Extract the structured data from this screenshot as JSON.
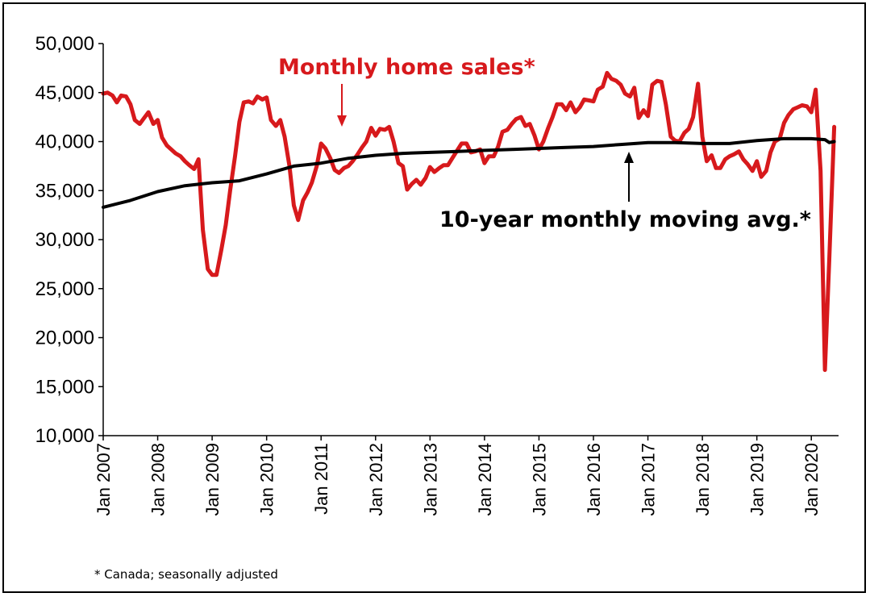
{
  "chart_data": {
    "type": "line",
    "title": "",
    "xlabel": "",
    "ylabel": "",
    "ylim": [
      10000,
      50000
    ],
    "yticks": [
      10000,
      15000,
      20000,
      25000,
      30000,
      35000,
      40000,
      45000,
      50000
    ],
    "ytick_labels": [
      "10,000",
      "15,000",
      "20,000",
      "25,000",
      "30,000",
      "35,000",
      "40,000",
      "45,000",
      "50,000"
    ],
    "xlim": [
      2007.0,
      2020.5
    ],
    "xticks": [
      2007,
      2008,
      2009,
      2010,
      2011,
      2012,
      2013,
      2014,
      2015,
      2016,
      2017,
      2018,
      2019,
      2020
    ],
    "xtick_labels": [
      "Jan 2007",
      "Jan 2008",
      "Jan 2009",
      "Jan 2010",
      "Jan 2011",
      "Jan 2012",
      "Jan 2013",
      "Jan 2014",
      "Jan 2015",
      "Jan 2016",
      "Jan 2017",
      "Jan 2018",
      "Jan 2019",
      "Jan 2020"
    ],
    "grid": false,
    "series": [
      {
        "name": "Monthly home sales*",
        "color": "#d7191c",
        "points": [
          [
            2007.0,
            44900
          ],
          [
            2007.08,
            45000
          ],
          [
            2007.17,
            44700
          ],
          [
            2007.25,
            44000
          ],
          [
            2007.33,
            44700
          ],
          [
            2007.42,
            44600
          ],
          [
            2007.5,
            43800
          ],
          [
            2007.58,
            42200
          ],
          [
            2007.67,
            41800
          ],
          [
            2007.75,
            42400
          ],
          [
            2007.83,
            43000
          ],
          [
            2007.92,
            41800
          ],
          [
            2008.0,
            42200
          ],
          [
            2008.08,
            40400
          ],
          [
            2008.17,
            39600
          ],
          [
            2008.25,
            39200
          ],
          [
            2008.33,
            38800
          ],
          [
            2008.42,
            38500
          ],
          [
            2008.5,
            38000
          ],
          [
            2008.58,
            37600
          ],
          [
            2008.67,
            37200
          ],
          [
            2008.75,
            38200
          ],
          [
            2008.83,
            31000
          ],
          [
            2008.92,
            27000
          ],
          [
            2009.0,
            26400
          ],
          [
            2009.08,
            26400
          ],
          [
            2009.17,
            29000
          ],
          [
            2009.25,
            31500
          ],
          [
            2009.33,
            35000
          ],
          [
            2009.42,
            38500
          ],
          [
            2009.5,
            42000
          ],
          [
            2009.58,
            44000
          ],
          [
            2009.67,
            44100
          ],
          [
            2009.75,
            43900
          ],
          [
            2009.83,
            44600
          ],
          [
            2009.92,
            44300
          ],
          [
            2010.0,
            44500
          ],
          [
            2010.08,
            42200
          ],
          [
            2010.17,
            41600
          ],
          [
            2010.25,
            42200
          ],
          [
            2010.33,
            40500
          ],
          [
            2010.42,
            37500
          ],
          [
            2010.5,
            33500
          ],
          [
            2010.58,
            32000
          ],
          [
            2010.67,
            34000
          ],
          [
            2010.75,
            34800
          ],
          [
            2010.83,
            35800
          ],
          [
            2010.92,
            37500
          ],
          [
            2011.0,
            39800
          ],
          [
            2011.08,
            39300
          ],
          [
            2011.17,
            38300
          ],
          [
            2011.25,
            37100
          ],
          [
            2011.33,
            36800
          ],
          [
            2011.42,
            37300
          ],
          [
            2011.5,
            37500
          ],
          [
            2011.58,
            38000
          ],
          [
            2011.67,
            38700
          ],
          [
            2011.75,
            39400
          ],
          [
            2011.83,
            40000
          ],
          [
            2011.92,
            41400
          ],
          [
            2012.0,
            40600
          ],
          [
            2012.08,
            41300
          ],
          [
            2012.17,
            41200
          ],
          [
            2012.25,
            41500
          ],
          [
            2012.33,
            40000
          ],
          [
            2012.42,
            37800
          ],
          [
            2012.5,
            37500
          ],
          [
            2012.58,
            35100
          ],
          [
            2012.67,
            35700
          ],
          [
            2012.75,
            36100
          ],
          [
            2012.83,
            35600
          ],
          [
            2012.92,
            36300
          ],
          [
            2013.0,
            37400
          ],
          [
            2013.08,
            36900
          ],
          [
            2013.17,
            37300
          ],
          [
            2013.25,
            37600
          ],
          [
            2013.33,
            37600
          ],
          [
            2013.42,
            38400
          ],
          [
            2013.5,
            39100
          ],
          [
            2013.58,
            39800
          ],
          [
            2013.67,
            39800
          ],
          [
            2013.75,
            38900
          ],
          [
            2013.83,
            39000
          ],
          [
            2013.92,
            39200
          ],
          [
            2014.0,
            37800
          ],
          [
            2014.08,
            38500
          ],
          [
            2014.17,
            38500
          ],
          [
            2014.25,
            39500
          ],
          [
            2014.33,
            41000
          ],
          [
            2014.42,
            41200
          ],
          [
            2014.5,
            41800
          ],
          [
            2014.58,
            42300
          ],
          [
            2014.67,
            42500
          ],
          [
            2014.75,
            41600
          ],
          [
            2014.83,
            41800
          ],
          [
            2014.92,
            40600
          ],
          [
            2015.0,
            39200
          ],
          [
            2015.08,
            40000
          ],
          [
            2015.17,
            41400
          ],
          [
            2015.25,
            42500
          ],
          [
            2015.33,
            43800
          ],
          [
            2015.42,
            43800
          ],
          [
            2015.5,
            43200
          ],
          [
            2015.58,
            44000
          ],
          [
            2015.67,
            43000
          ],
          [
            2015.75,
            43500
          ],
          [
            2015.83,
            44300
          ],
          [
            2015.92,
            44200
          ],
          [
            2016.0,
            44100
          ],
          [
            2016.08,
            45300
          ],
          [
            2016.17,
            45600
          ],
          [
            2016.25,
            47000
          ],
          [
            2016.33,
            46400
          ],
          [
            2016.42,
            46200
          ],
          [
            2016.5,
            45800
          ],
          [
            2016.58,
            44900
          ],
          [
            2016.67,
            44600
          ],
          [
            2016.75,
            45500
          ],
          [
            2016.83,
            42400
          ],
          [
            2016.92,
            43200
          ],
          [
            2017.0,
            42600
          ],
          [
            2017.08,
            45800
          ],
          [
            2017.17,
            46200
          ],
          [
            2017.25,
            46100
          ],
          [
            2017.33,
            43800
          ],
          [
            2017.42,
            40500
          ],
          [
            2017.5,
            40100
          ],
          [
            2017.58,
            40000
          ],
          [
            2017.67,
            40900
          ],
          [
            2017.75,
            41300
          ],
          [
            2017.83,
            42500
          ],
          [
            2017.92,
            45900
          ],
          [
            2018.0,
            40500
          ],
          [
            2018.08,
            38000
          ],
          [
            2018.17,
            38600
          ],
          [
            2018.25,
            37300
          ],
          [
            2018.33,
            37300
          ],
          [
            2018.42,
            38200
          ],
          [
            2018.5,
            38500
          ],
          [
            2018.58,
            38700
          ],
          [
            2018.67,
            39000
          ],
          [
            2018.75,
            38200
          ],
          [
            2018.83,
            37700
          ],
          [
            2018.92,
            37000
          ],
          [
            2019.0,
            38000
          ],
          [
            2019.08,
            36400
          ],
          [
            2019.17,
            37000
          ],
          [
            2019.25,
            38900
          ],
          [
            2019.33,
            40000
          ],
          [
            2019.42,
            40300
          ],
          [
            2019.5,
            41900
          ],
          [
            2019.58,
            42700
          ],
          [
            2019.67,
            43300
          ],
          [
            2019.75,
            43500
          ],
          [
            2019.83,
            43700
          ],
          [
            2019.92,
            43600
          ],
          [
            2020.0,
            43000
          ],
          [
            2020.08,
            45300
          ],
          [
            2020.17,
            37000
          ],
          [
            2020.25,
            16700
          ],
          [
            2020.33,
            28000
          ],
          [
            2020.42,
            41500
          ]
        ]
      },
      {
        "name": "10-year monthly moving avg.*",
        "color": "#000000",
        "points": [
          [
            2007.0,
            33300
          ],
          [
            2007.5,
            34000
          ],
          [
            2008.0,
            34900
          ],
          [
            2008.5,
            35500
          ],
          [
            2009.0,
            35800
          ],
          [
            2009.5,
            36000
          ],
          [
            2010.0,
            36700
          ],
          [
            2010.5,
            37500
          ],
          [
            2011.0,
            37800
          ],
          [
            2011.5,
            38300
          ],
          [
            2012.0,
            38600
          ],
          [
            2012.5,
            38800
          ],
          [
            2013.0,
            38900
          ],
          [
            2013.5,
            39000
          ],
          [
            2014.0,
            39100
          ],
          [
            2014.5,
            39200
          ],
          [
            2015.0,
            39300
          ],
          [
            2015.5,
            39400
          ],
          [
            2016.0,
            39500
          ],
          [
            2016.5,
            39700
          ],
          [
            2017.0,
            39900
          ],
          [
            2017.5,
            39900
          ],
          [
            2018.0,
            39800
          ],
          [
            2018.5,
            39800
          ],
          [
            2019.0,
            40100
          ],
          [
            2019.5,
            40300
          ],
          [
            2020.0,
            40300
          ],
          [
            2020.25,
            40200
          ],
          [
            2020.33,
            39900
          ],
          [
            2020.42,
            40000
          ]
        ]
      }
    ],
    "annotations": [
      {
        "text": "Monthly home sales*",
        "color": "#d7191c",
        "series": 0
      },
      {
        "text": "10-year monthly moving avg.*",
        "color": "#000000",
        "series": 1
      }
    ]
  },
  "footnote": "* Canada; seasonally adjusted"
}
